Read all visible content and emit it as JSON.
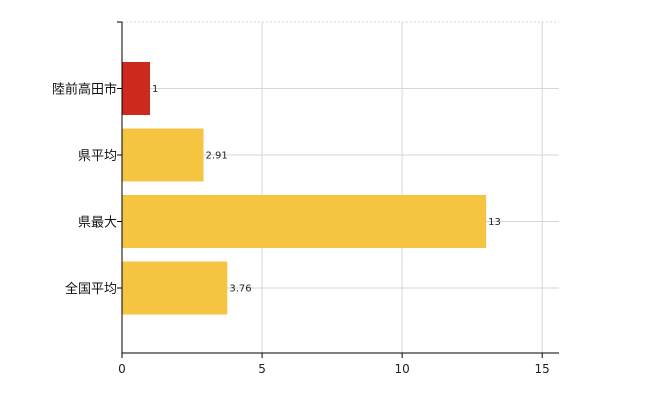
{
  "chart_data": {
    "type": "bar",
    "orientation": "horizontal",
    "title": "",
    "xlabel": "",
    "ylabel": "",
    "categories": [
      "陸前高田市",
      "県平均",
      "県最大",
      "全国平均"
    ],
    "values": [
      1,
      2.91,
      13,
      3.76
    ],
    "value_labels": [
      "1",
      "2.91",
      "13",
      "3.76"
    ],
    "bar_colors": [
      "#cc2a1c",
      "#f5c542",
      "#f5c542",
      "#f5c542"
    ],
    "xlim": [
      0,
      15.6
    ],
    "x_ticks": [
      0,
      5,
      10,
      15
    ],
    "x_tick_labels": [
      "0",
      "5",
      "10",
      "15"
    ],
    "grid": true,
    "legend": "none"
  }
}
